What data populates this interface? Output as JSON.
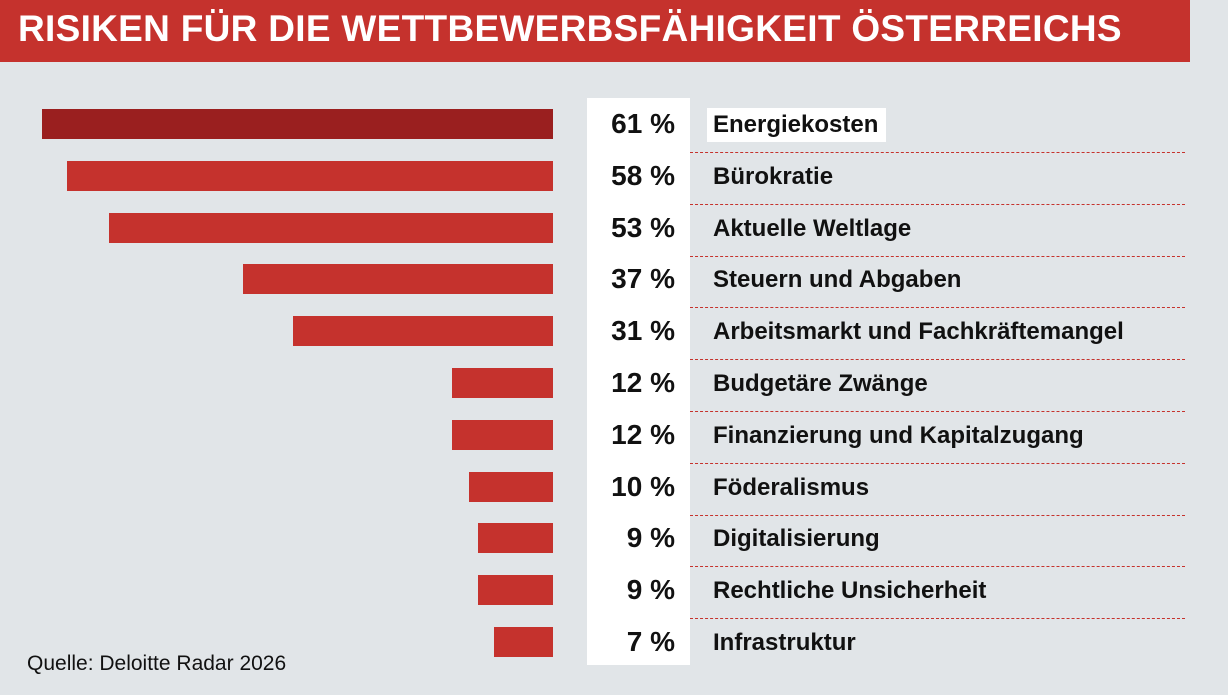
{
  "title": "RISIKEN FÜR DIE WETTBEWERBSFÄHIGKEIT ÖSTERREICHS",
  "source": "Quelle: Deloitte Radar 2026",
  "colors": {
    "bar": "#c5322d",
    "bar_highlight": "#9a1f1f",
    "background": "#e1e5e8"
  },
  "chart_data": {
    "type": "bar",
    "orientation": "horizontal",
    "title": "RISIKEN FÜR DIE WETTBEWERBSFÄHIGKEIT ÖSTERREICHS",
    "categories": [
      "Energiekosten",
      "Bürokratie",
      "Aktuelle Weltlage",
      "Steuern und Abgaben",
      "Arbeitsmarkt und Fachkräftemangel",
      "Budgetäre Zwänge",
      "Finanzierung und Kapitalzugang",
      "Föderalismus",
      "Digitalisierung",
      "Rechtliche Unsicherheit",
      "Infrastruktur"
    ],
    "values": [
      61,
      58,
      53,
      37,
      31,
      12,
      12,
      10,
      9,
      9,
      7
    ],
    "value_labels": [
      "61 %",
      "58 %",
      "53 %",
      "37 %",
      "31 %",
      "12 %",
      "12 %",
      "10 %",
      "9 %",
      "9 %",
      "7 %"
    ],
    "highlighted_category": "Energiekosten"
  }
}
